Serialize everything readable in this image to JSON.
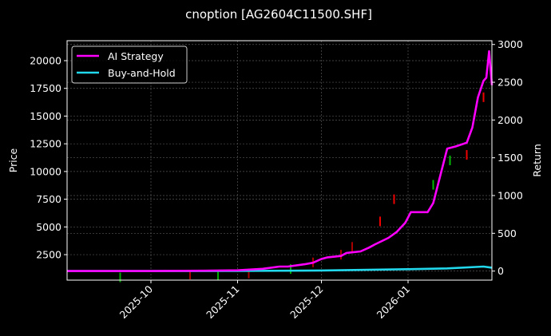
{
  "chart_data": {
    "type": "line",
    "title": "cnoption [AG2604C11500.SHF]",
    "xlabel": "",
    "ylabel": "Price",
    "ylabel_right": "Return",
    "x_ticks": [
      "2025-10",
      "2025-11",
      "2025-12",
      "2026-01"
    ],
    "y_ticks_left": [
      2500,
      5000,
      7500,
      10000,
      12500,
      15000,
      17500,
      20000
    ],
    "y_ticks_right": [
      0,
      500,
      1000,
      1500,
      2000,
      2500,
      3000
    ],
    "ylim_left": [
      200,
      21800
    ],
    "ylim_right": [
      -120,
      3050
    ],
    "xlim": [
      "2025-09-01",
      "2026-01-31"
    ],
    "grid": true,
    "legend_position": "upper left",
    "series": [
      {
        "name": "AI Strategy",
        "axis": "right",
        "color": "#ff00ff",
        "x": [
          "2025-09-01",
          "2025-10-01",
          "2025-10-20",
          "2025-11-01",
          "2025-11-10",
          "2025-11-16",
          "2025-11-19",
          "2025-11-25",
          "2025-11-28",
          "2025-12-01",
          "2025-12-03",
          "2025-12-08",
          "2025-12-10",
          "2025-12-15",
          "2025-12-18",
          "2025-12-20",
          "2025-12-25",
          "2025-12-28",
          "2025-12-31",
          "2026-01-02",
          "2026-01-08",
          "2026-01-10",
          "2026-01-15",
          "2026-01-18",
          "2026-01-22",
          "2026-01-24",
          "2026-01-26",
          "2026-01-28",
          "2026-01-29",
          "2026-01-30",
          "2026-01-31"
        ],
        "values": [
          0,
          0,
          5,
          10,
          30,
          60,
          60,
          90,
          110,
          160,
          180,
          200,
          240,
          260,
          310,
          350,
          440,
          520,
          640,
          780,
          780,
          900,
          1620,
          1650,
          1700,
          1900,
          2300,
          2520,
          2560,
          2910,
          2460
        ]
      },
      {
        "name": "Buy-and-Hold",
        "axis": "right",
        "color": "#22d8ec",
        "x": [
          "2025-09-01",
          "2025-10-01",
          "2025-11-01",
          "2025-12-01",
          "2026-01-01",
          "2026-01-15",
          "2026-01-28",
          "2026-01-31"
        ],
        "values": [
          0,
          0,
          2,
          8,
          25,
          35,
          60,
          45
        ]
      }
    ],
    "candles_note": "Faint red/green OHLC candlesticks on left Price axis, rising from ~200 to ~17000"
  },
  "legend": {
    "items": [
      {
        "label": "AI Strategy",
        "color": "#ff00ff"
      },
      {
        "label": "Buy-and-Hold",
        "color": "#22d8ec"
      }
    ]
  }
}
